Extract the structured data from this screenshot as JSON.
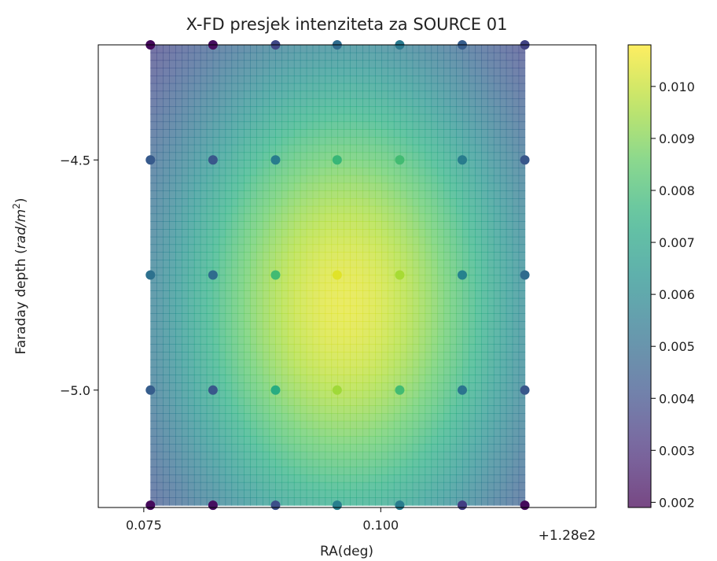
{
  "chart_data": {
    "type": "heatmap",
    "title": "X-FD presjek intenziteta za SOURCE 01",
    "xlabel": "RA(deg)",
    "ylabel_main": "Faraday depth (",
    "ylabel_unit": "rad/m",
    "ylabel_exp": "2",
    "ylabel_close": ")",
    "x_offset_label": "+1.28e2",
    "xlim": [
      0.0702,
      0.1227
    ],
    "ylim": [
      -5.255,
      -4.25
    ],
    "x_ticks": [
      {
        "value": 0.075,
        "label": "0.075"
      },
      {
        "value": 0.1,
        "label": "0.100"
      }
    ],
    "y_ticks": [
      {
        "value": -4.5,
        "label": "−4.5"
      },
      {
        "value": -5.0,
        "label": "−5.0"
      }
    ],
    "grid": false,
    "colormap": "viridis",
    "colorbar": {
      "range": [
        0.0019,
        0.0108
      ],
      "ticks": [
        {
          "value": 0.002,
          "label": "0.002"
        },
        {
          "value": 0.003,
          "label": "0.003"
        },
        {
          "value": 0.004,
          "label": "0.004"
        },
        {
          "value": 0.005,
          "label": "0.005"
        },
        {
          "value": 0.006,
          "label": "0.006"
        },
        {
          "value": 0.007,
          "label": "0.007"
        },
        {
          "value": 0.008,
          "label": "0.008"
        },
        {
          "value": 0.009,
          "label": "0.009"
        },
        {
          "value": 0.01,
          "label": "0.010"
        }
      ]
    },
    "x": [
      0.0757,
      0.0823,
      0.0889,
      0.0954,
      0.102,
      0.1086,
      0.1152
    ],
    "y": [
      -4.25,
      -4.5,
      -4.75,
      -5.0,
      -5.25
    ],
    "points": [
      [
        0.0021,
        0.0022,
        0.0038,
        0.005,
        0.0055,
        0.0045,
        0.0036
      ],
      [
        0.0044,
        0.0043,
        0.0056,
        0.0078,
        0.008,
        0.0056,
        0.0043
      ],
      [
        0.0052,
        0.005,
        0.008,
        0.0104,
        0.0096,
        0.0058,
        0.005
      ],
      [
        0.0045,
        0.0043,
        0.0074,
        0.0095,
        0.008,
        0.0053,
        0.0043
      ],
      [
        0.0021,
        0.0022,
        0.004,
        0.0057,
        0.0056,
        0.0035,
        0.0021
      ]
    ],
    "surface_model": {
      "center_x": 0.0962,
      "center_y": -4.81,
      "sigma_x": 0.0152,
      "sigma_y": 0.44,
      "amplitude": 0.0084,
      "base": 0.002
    }
  }
}
